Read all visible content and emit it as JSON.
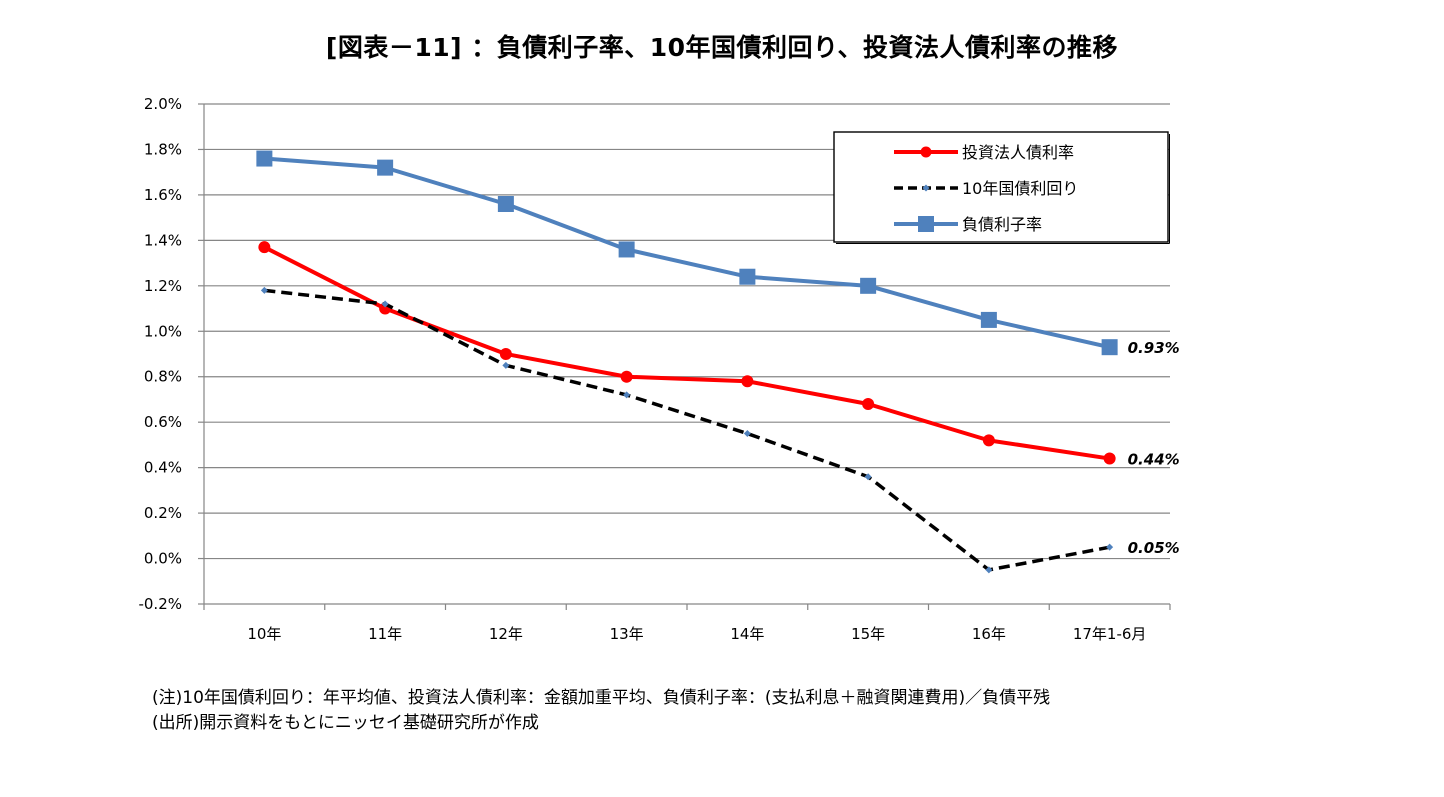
{
  "chart_data": {
    "type": "line",
    "title": "[図表－11] ：負債利子率、10年国債利回り、投資法人債利率の推移",
    "categories": [
      "10年",
      "11年",
      "12年",
      "13年",
      "14年",
      "15年",
      "16年",
      "17年1-6月"
    ],
    "ylim": [
      -0.2,
      2.0
    ],
    "y_ticks": [
      "2.0%",
      "1.8%",
      "1.6%",
      "1.4%",
      "1.2%",
      "1.0%",
      "0.8%",
      "0.6%",
      "0.4%",
      "0.2%",
      "0.0%",
      "-0.2%"
    ],
    "grid": true,
    "legend_position": "top-right",
    "series": [
      {
        "name": "投資法人債利率",
        "color": "#ff0000",
        "marker": "circle",
        "dash": "solid",
        "values": [
          1.37,
          1.1,
          0.9,
          0.8,
          0.78,
          0.68,
          0.52,
          0.44
        ],
        "end_label": "0.44%"
      },
      {
        "name": "10年国債利回り",
        "color": "#000000",
        "marker": "small-diamond",
        "dash": "dashed",
        "values": [
          1.18,
          1.12,
          0.85,
          0.72,
          0.55,
          0.36,
          -0.05,
          0.05
        ],
        "end_label": "0.05%"
      },
      {
        "name": "負債利子率",
        "color": "#4f81bd",
        "marker": "square",
        "dash": "solid",
        "values": [
          1.76,
          1.72,
          1.56,
          1.36,
          1.24,
          1.2,
          1.05,
          0.93
        ],
        "end_label": "0.93%"
      }
    ]
  },
  "notes": {
    "line1": "(注)10年国債利回り：年平均値、投資法人債利率：金額加重平均、負債利子率：(支払利息＋融資関連費用)／負債平残",
    "line2": "(出所)開示資料をもとにニッセイ基礎研究所が作成"
  }
}
